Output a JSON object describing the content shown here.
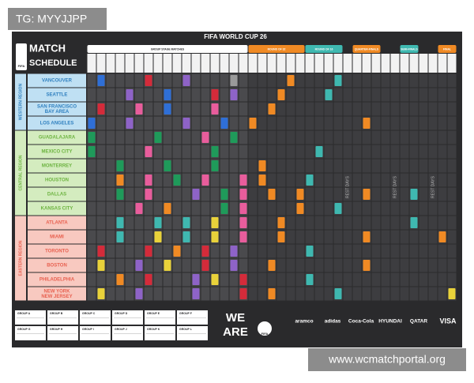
{
  "watermark": "TG: MYYJJPP",
  "header": {
    "logo_line1": "MATCH",
    "logo_line2": "SCHEDULE",
    "badge": "FIFA",
    "title": "FIFA WORLD CUP 26"
  },
  "stages": [
    "GROUP STAGE MATCHES",
    "ROUND OF 32",
    "ROUND OF 16",
    "QUARTER-FINALS",
    "SEMI-FINALS",
    "FINAL"
  ],
  "regions": [
    {
      "label": "WESTERN REGION",
      "cities": [
        [
          "VANCOUVER"
        ],
        [
          "SEATTLE"
        ],
        [
          "SAN FRANCISCO",
          "BAY AREA"
        ],
        [
          "LOS ANGELES"
        ]
      ]
    },
    {
      "label": "CENTRAL REGION",
      "cities": [
        [
          "GUADALAJARA"
        ],
        [
          "MEXICO CITY"
        ],
        [
          "MONTERREY"
        ],
        [
          "HOUSTON"
        ],
        [
          "DALLAS"
        ],
        [
          "KANSAS CITY"
        ]
      ]
    },
    {
      "label": "EASTERN REGION",
      "cities": [
        [
          "ATLANTA"
        ],
        [
          "MIAMI"
        ],
        [
          "TORONTO"
        ],
        [
          "BOSTON"
        ],
        [
          "PHILADELPHIA"
        ],
        [
          "NEW YORK",
          "NEW JERSEY"
        ]
      ]
    }
  ],
  "rest_days": [
    "REST DAYS",
    "REST DAYS",
    "REST DAYS"
  ],
  "groups": [
    "GROUP A",
    "GROUP B",
    "GROUP C",
    "GROUP D",
    "GROUP E",
    "GROUP F",
    "GROUP G",
    "GROUP H",
    "GROUP I",
    "GROUP J",
    "GROUP K",
    "GROUP L"
  ],
  "brand": {
    "line1": "WE",
    "line2": "ARE",
    "badge": "FIFA"
  },
  "sponsors": [
    "aramco",
    "adidas",
    "Coca-Cola",
    "HYUNDAI",
    "QATAR",
    "VISA"
  ],
  "footer_url": "www.wcmatchportal.org"
}
